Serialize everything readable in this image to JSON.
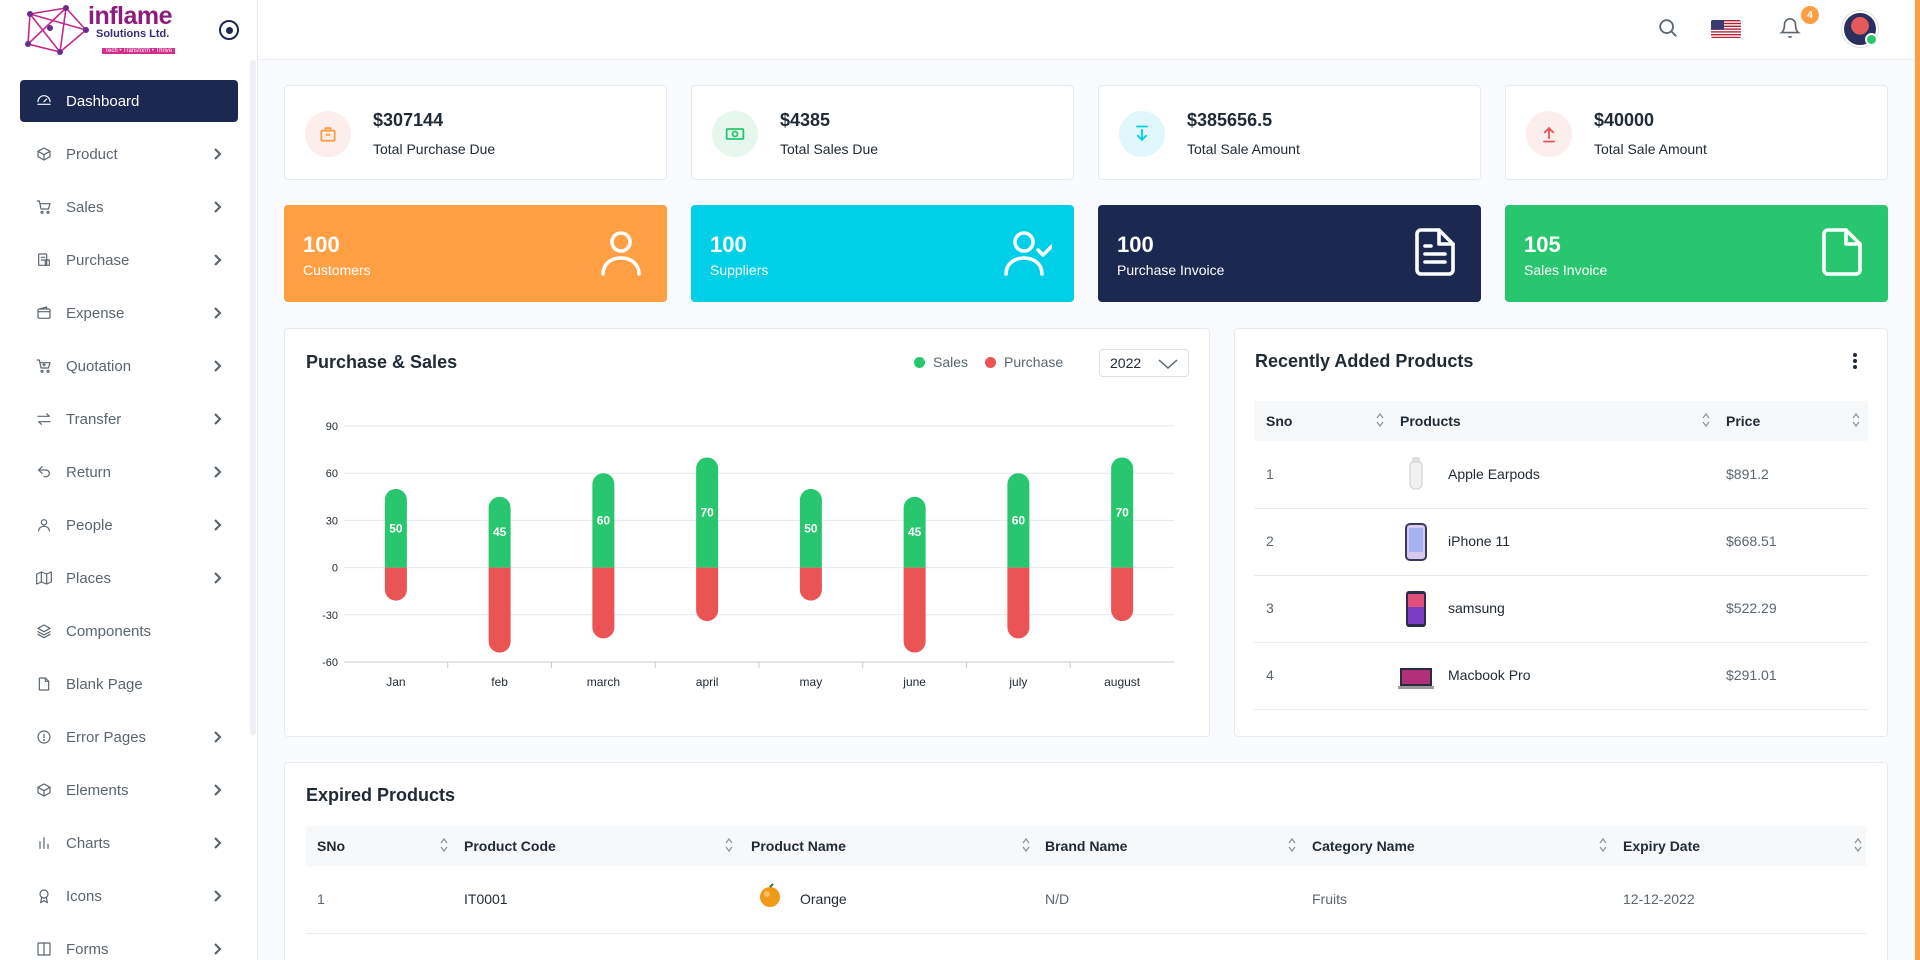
{
  "brand": {
    "name": "inflame",
    "sub": "Solutions Ltd.",
    "tagline": "Tech • Transform • Thrive"
  },
  "sidebar": {
    "items": [
      {
        "label": "Dashboard",
        "icon": "dashboard-icon",
        "active": true,
        "has_submenu": false
      },
      {
        "label": "Product",
        "icon": "box-icon",
        "has_submenu": true
      },
      {
        "label": "Sales",
        "icon": "cart-icon",
        "has_submenu": true
      },
      {
        "label": "Purchase",
        "icon": "purchase-icon",
        "has_submenu": true
      },
      {
        "label": "Expense",
        "icon": "wallet-icon",
        "has_submenu": true
      },
      {
        "label": "Quotation",
        "icon": "quotation-cart-icon",
        "has_submenu": true
      },
      {
        "label": "Transfer",
        "icon": "transfer-arrows-icon",
        "has_submenu": true
      },
      {
        "label": "Return",
        "icon": "return-arrow-icon",
        "has_submenu": true
      },
      {
        "label": "People",
        "icon": "user-icon",
        "has_submenu": true
      },
      {
        "label": "Places",
        "icon": "map-icon",
        "has_submenu": true
      },
      {
        "label": "Components",
        "icon": "layers-icon",
        "has_submenu": false
      },
      {
        "label": "Blank Page",
        "icon": "file-icon",
        "has_submenu": false
      },
      {
        "label": "Error Pages",
        "icon": "alert-circle-icon",
        "has_submenu": true
      },
      {
        "label": "Elements",
        "icon": "cube-icon",
        "has_submenu": true
      },
      {
        "label": "Charts",
        "icon": "bar-chart-icon",
        "has_submenu": true
      },
      {
        "label": "Icons",
        "icon": "award-icon",
        "has_submenu": true
      },
      {
        "label": "Forms",
        "icon": "columns-icon",
        "has_submenu": true
      }
    ]
  },
  "header": {
    "notification_count": "4"
  },
  "stats": [
    {
      "value": "$307144",
      "label": "Total Purchase Due",
      "color": "#ff9f43",
      "bg": "#fdeeee",
      "icon": "purchase-bag-icon"
    },
    {
      "value": "$4385",
      "label": "Total Sales Due",
      "color": "#28c76f",
      "bg": "#e6f7ee",
      "icon": "cash-icon"
    },
    {
      "value": "$385656.5",
      "label": "Total Sale Amount",
      "color": "#00cfe8",
      "bg": "#e0f8fb",
      "icon": "download-icon"
    },
    {
      "value": "$40000",
      "label": "Total Sale Amount",
      "color": "#ea5455",
      "bg": "#fdeeee",
      "icon": "upload-icon"
    }
  ],
  "counts": [
    {
      "value": "100",
      "label": "Customers",
      "color": "#ff9f43",
      "icon": "user-icon"
    },
    {
      "value": "100",
      "label": "Suppliers",
      "color": "#00cfe8",
      "icon": "user-check-icon"
    },
    {
      "value": "100",
      "label": "Purchase Invoice",
      "color": "#1b2850",
      "icon": "file-text-icon"
    },
    {
      "value": "105",
      "label": "Sales Invoice",
      "color": "#28c76f",
      "icon": "file-icon"
    }
  ],
  "purchase_sales": {
    "title": "Purchase & Sales",
    "legend": [
      "Sales",
      "Purchase"
    ],
    "year": "2022"
  },
  "chart_data": {
    "type": "bar",
    "categories": [
      "Jan",
      "feb",
      "march",
      "april",
      "may",
      "june",
      "july",
      "august"
    ],
    "series": [
      {
        "name": "Sales",
        "values": [
          50,
          45,
          60,
          70,
          50,
          45,
          60,
          70
        ],
        "color": "#28c76f"
      },
      {
        "name": "Purchase",
        "values": [
          -21,
          -54,
          -45,
          -34,
          -21,
          -54,
          -45,
          -34
        ],
        "color": "#ea5455"
      }
    ],
    "yticks": [
      90,
      60,
      30,
      0,
      -30,
      -60
    ],
    "ylim": [
      -60,
      90
    ],
    "data_labels": true,
    "grid": true
  },
  "recent_products": {
    "title": "Recently Added Products",
    "columns": [
      "Sno",
      "Products",
      "Price"
    ],
    "rows": [
      {
        "sno": "1",
        "name": "Apple Earpods",
        "price": "$891.2",
        "img": "earpods-image"
      },
      {
        "sno": "2",
        "name": "iPhone 11",
        "price": "$668.51",
        "img": "iphone-image"
      },
      {
        "sno": "3",
        "name": "samsung",
        "price": "$522.29",
        "img": "samsung-image"
      },
      {
        "sno": "4",
        "name": "Macbook Pro",
        "price": "$291.01",
        "img": "macbook-image"
      }
    ]
  },
  "expired_products": {
    "title": "Expired Products",
    "columns": [
      "SNo",
      "Product Code",
      "Product Name",
      "Brand Name",
      "Category Name",
      "Expiry Date"
    ],
    "rows": [
      {
        "sno": "1",
        "code": "IT0001",
        "name": "Orange",
        "brand": "N/D",
        "category": "Fruits",
        "expiry": "12-12-2022",
        "img": "orange-image"
      }
    ]
  }
}
